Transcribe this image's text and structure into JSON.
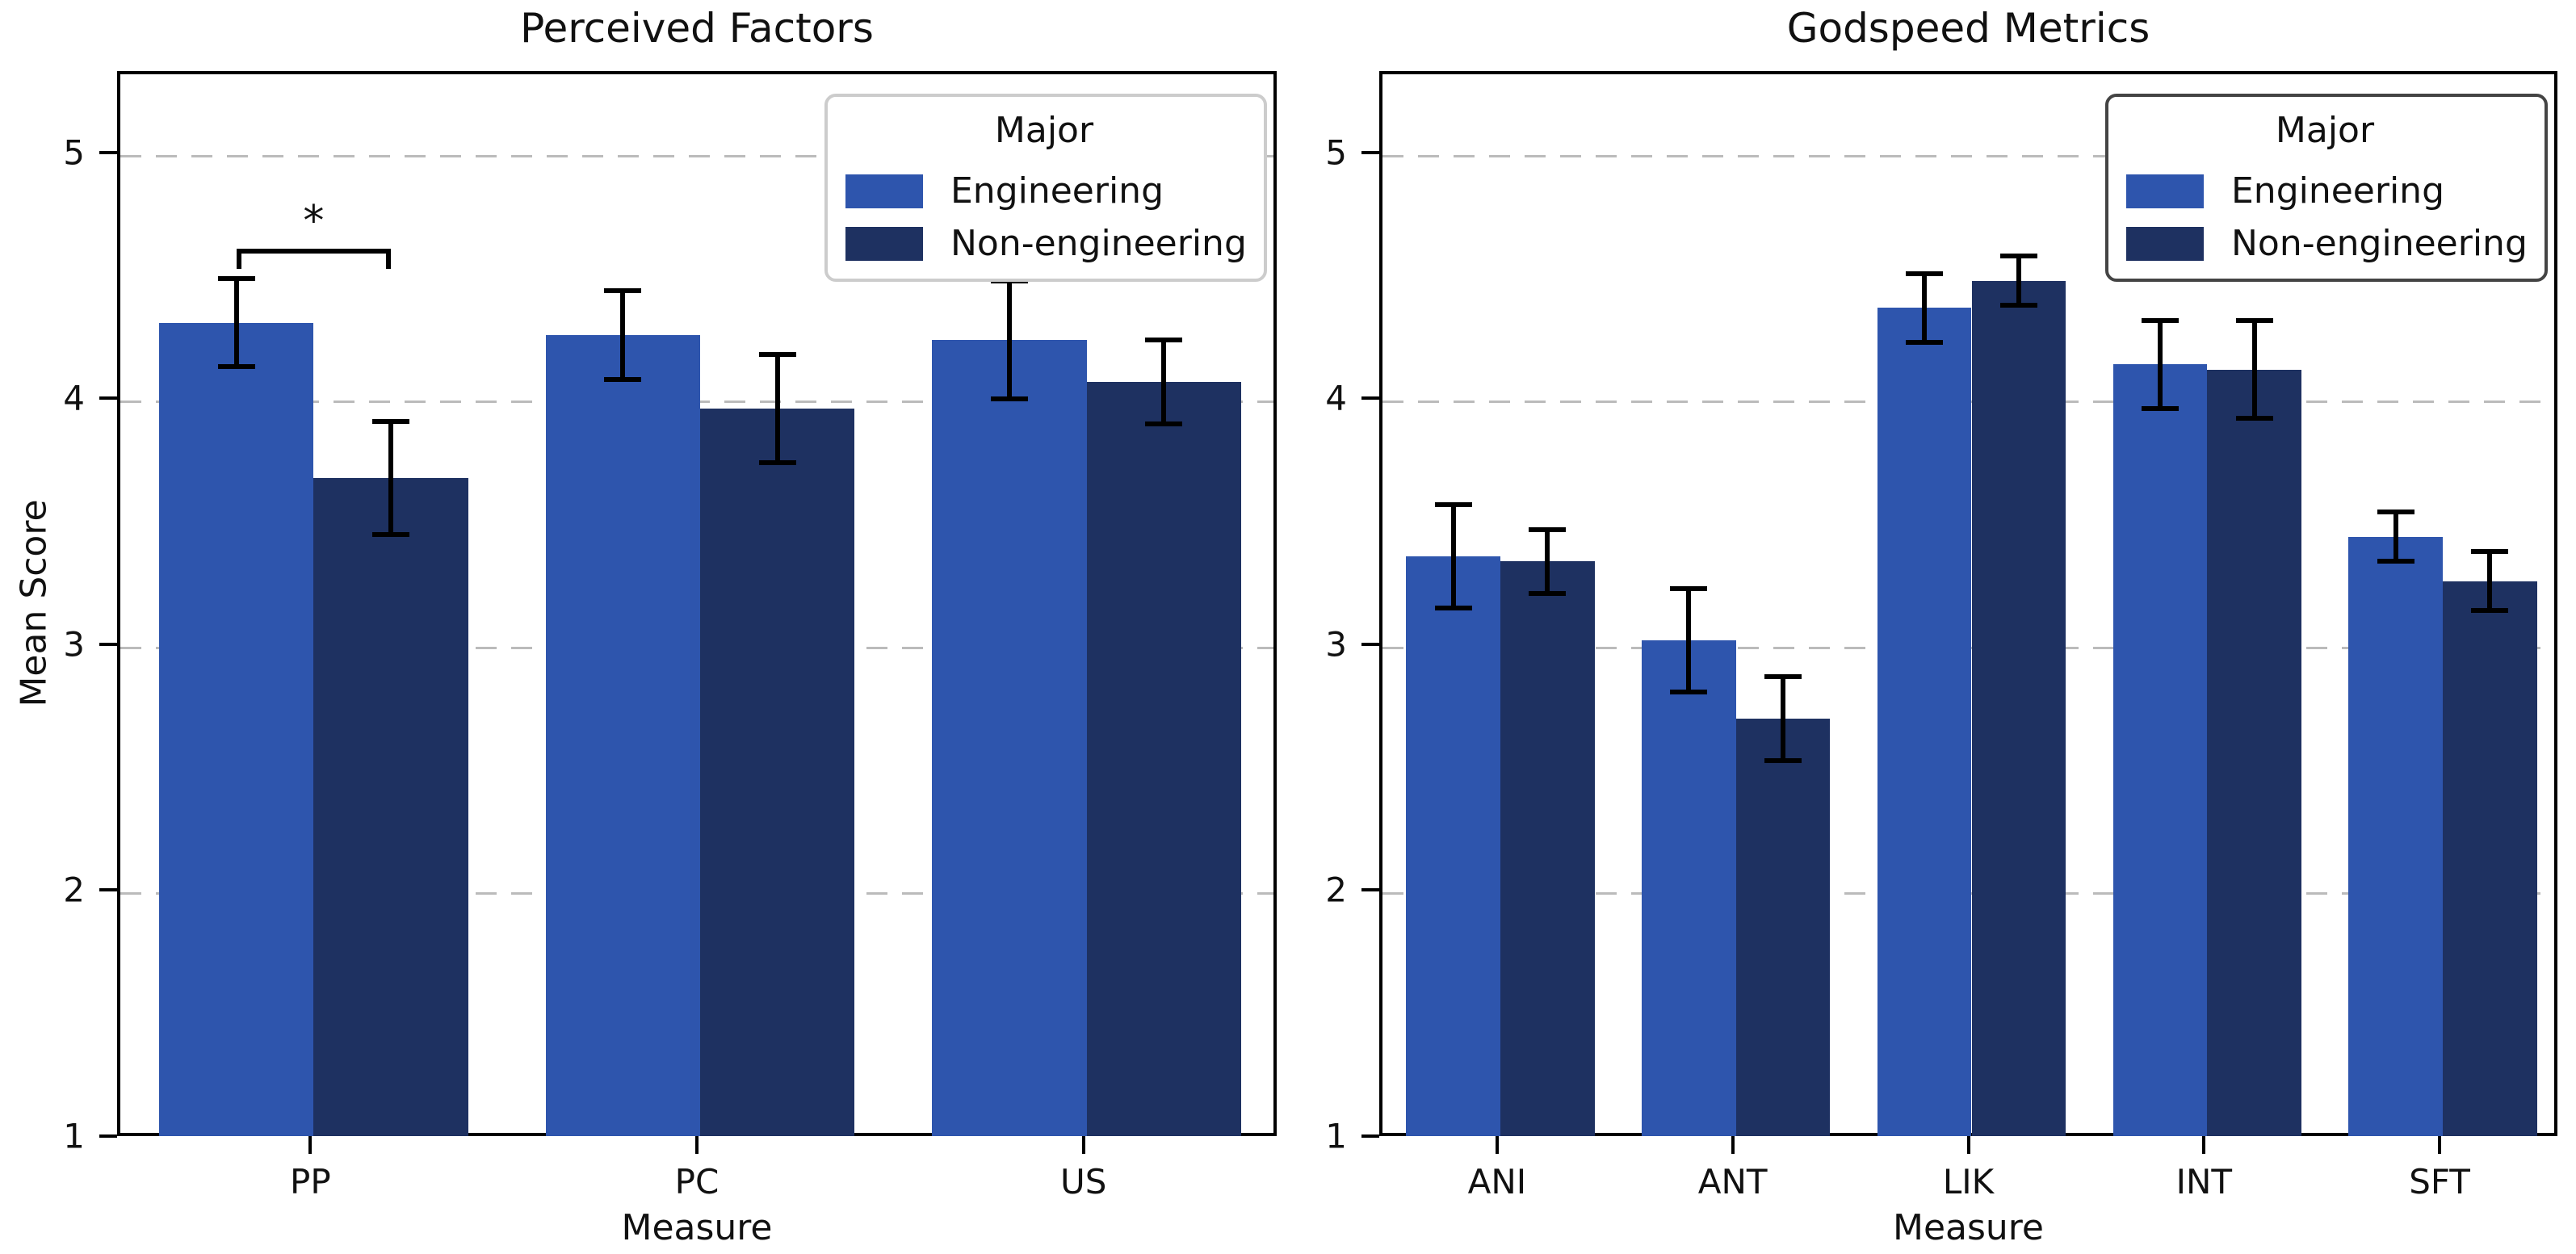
{
  "figure": {
    "background": "#ffffff"
  },
  "colors": {
    "engineering": "#2e55ad",
    "non_engineering": "#1e3161",
    "grid": "#bbbbbb",
    "error_bar": "#000000",
    "spine": "#000000",
    "legend_border_left": "#cccccc",
    "legend_border_right": "#444444"
  },
  "legend": {
    "title": "Major",
    "entries": [
      {
        "label": "Engineering",
        "color_key": "engineering"
      },
      {
        "label": "Non-engineering",
        "color_key": "non_engineering"
      }
    ],
    "position": "upper right"
  },
  "shared": {
    "ylabel": "Mean Score",
    "xlabel": "Measure"
  },
  "chart_data": [
    {
      "type": "bar",
      "title": "Perceived Factors",
      "xlabel": "Measure",
      "ylabel": "Mean Score",
      "categories": [
        "PP",
        "PC",
        "US"
      ],
      "series": [
        {
          "name": "Engineering",
          "values": [
            4.32,
            4.27,
            4.25
          ],
          "errors": [
            0.18,
            0.18,
            0.24
          ]
        },
        {
          "name": "Non-engineering",
          "values": [
            3.69,
            3.97,
            4.08
          ],
          "errors": [
            0.23,
            0.22,
            0.17
          ]
        }
      ],
      "ylim": [
        1,
        5.33
      ],
      "yticks": [
        1,
        2,
        3,
        4,
        5
      ],
      "grid": "horizontal-dashed",
      "legend_position": "upper right",
      "annotations": [
        {
          "kind": "significance-bracket",
          "category": "PP",
          "label": "*",
          "bracket_y": 4.62,
          "leg_drop": 0.08,
          "label_y": 4.72
        }
      ]
    },
    {
      "type": "bar",
      "title": "Godspeed Metrics",
      "xlabel": "Measure",
      "ylabel": "Mean Score",
      "categories": [
        "ANI",
        "ANT",
        "LIK",
        "INT",
        "SFT"
      ],
      "series": [
        {
          "name": "Engineering",
          "values": [
            3.37,
            3.03,
            4.38,
            4.15,
            3.45
          ],
          "errors": [
            0.21,
            0.21,
            0.14,
            0.18,
            0.1
          ]
        },
        {
          "name": "Non-engineering",
          "values": [
            3.35,
            2.71,
            4.49,
            4.13,
            3.27
          ],
          "errors": [
            0.13,
            0.17,
            0.1,
            0.2,
            0.12
          ]
        }
      ],
      "ylim": [
        1,
        5.33
      ],
      "yticks": [
        1,
        2,
        3,
        4,
        5
      ],
      "grid": "horizontal-dashed",
      "legend_position": "upper right",
      "annotations": []
    }
  ]
}
